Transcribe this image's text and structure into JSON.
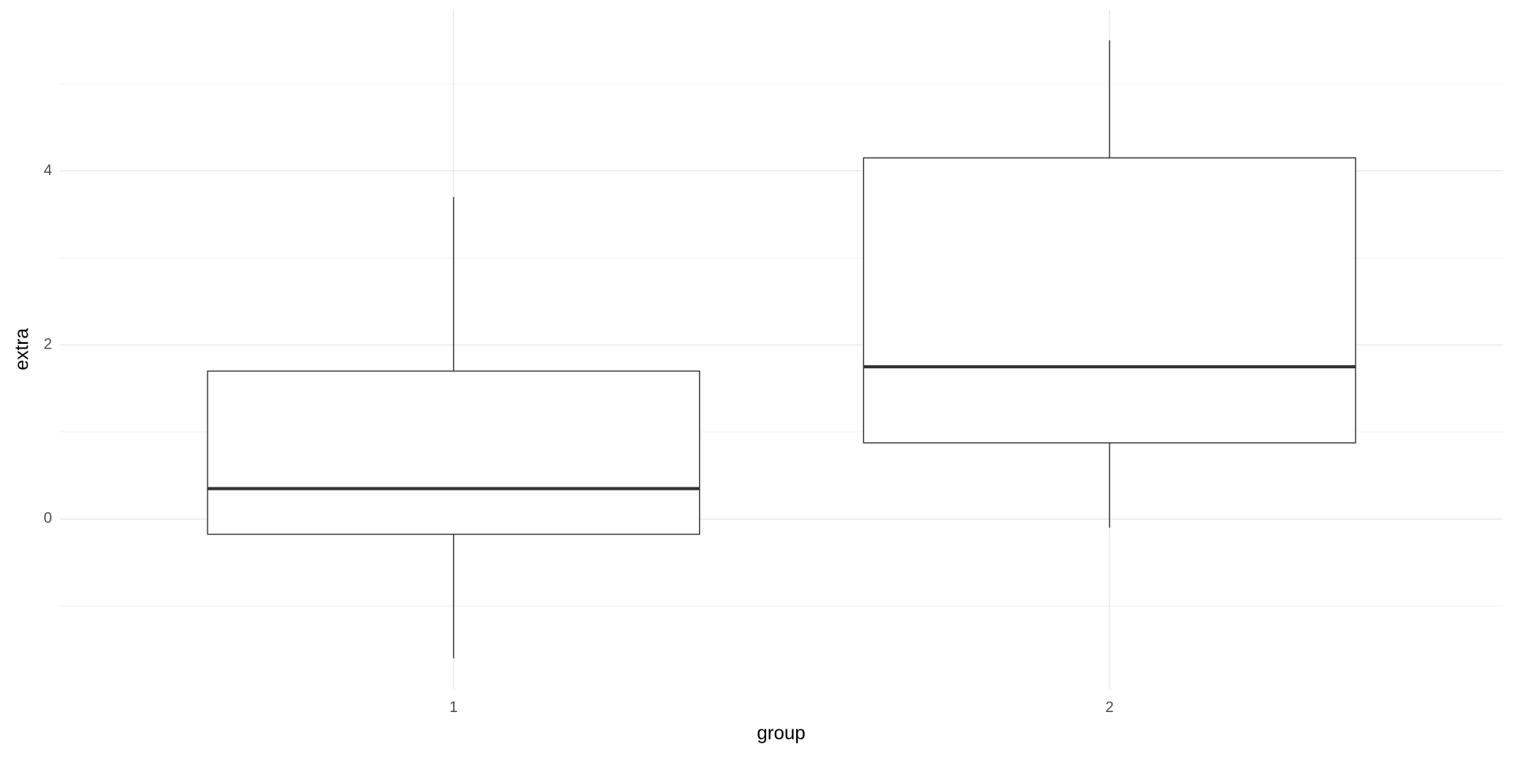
{
  "chart_data": {
    "type": "boxplot",
    "x_label": "group",
    "y_label": "extra",
    "categories": [
      "1",
      "2"
    ],
    "boxes": [
      {
        "min": -1.6,
        "q1": -0.175,
        "median": 0.35,
        "q3": 1.7,
        "max": 3.7
      },
      {
        "min": -0.1,
        "q1": 0.875,
        "median": 1.75,
        "q3": 4.15,
        "max": 5.5
      }
    ],
    "ylim": [
      -1.955,
      5.855
    ],
    "yticks": [
      0,
      2,
      4
    ],
    "yminor": [
      -1,
      1,
      3,
      5
    ],
    "grid": true,
    "color": "#333333",
    "fill": "#ffffff"
  }
}
